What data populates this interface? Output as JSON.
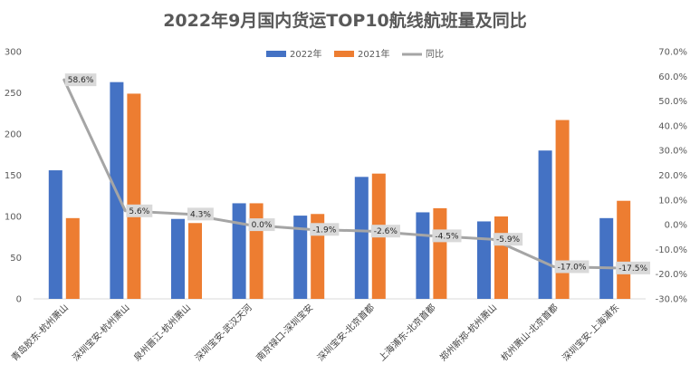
{
  "chart_data": {
    "type": "bar",
    "title": "2022年9月国内货运TOP10航线航班量及同比",
    "categories": [
      "青岛胶东-杭州萧山",
      "深圳宝安-杭州萧山",
      "泉州晋江-杭州萧山",
      "深圳宝安-武汉天河",
      "南京禄口-深圳宝安",
      "深圳宝安-北京首都",
      "上海浦东-北京首都",
      "郑州新郑-杭州萧山",
      "杭州萧山-北京首都",
      "深圳宝安-上海浦东"
    ],
    "series": [
      {
        "name": "2022年",
        "type": "bar",
        "axis": "left",
        "color": "#4472C4",
        "values": [
          156,
          263,
          97,
          116,
          101,
          148,
          105,
          94,
          180,
          98
        ]
      },
      {
        "name": "2021年",
        "type": "bar",
        "axis": "left",
        "color": "#ED7D31",
        "values": [
          98,
          249,
          92,
          116,
          103,
          152,
          110,
          100,
          217,
          119
        ]
      },
      {
        "name": "同比",
        "type": "line",
        "axis": "right",
        "color": "#A5A5A5",
        "values": [
          58.6,
          5.6,
          4.3,
          0.0,
          -1.9,
          -2.6,
          -4.5,
          -5.9,
          -17.0,
          -17.5
        ],
        "labels": [
          "58.6%",
          "5.6%",
          "4.3%",
          "0.0%",
          "-1.9%",
          "-2.6%",
          "-4.5%",
          "-5.9%",
          "-17.0%",
          "-17.5%"
        ]
      }
    ],
    "y_left": {
      "min": 0,
      "max": 300,
      "step": 50,
      "tick_labels": [
        "0",
        "50",
        "100",
        "150",
        "200",
        "250",
        "300"
      ]
    },
    "y_right": {
      "min": -30,
      "max": 70,
      "step": 10,
      "tick_labels": [
        "-30.0%",
        "-20.0%",
        "-10.0%",
        "0.0%",
        "10.0%",
        "20.0%",
        "30.0%",
        "40.0%",
        "50.0%",
        "60.0%",
        "70.0%"
      ]
    },
    "legend_position": "top-center",
    "grid": false,
    "xlabel": "",
    "ylabel": ""
  }
}
